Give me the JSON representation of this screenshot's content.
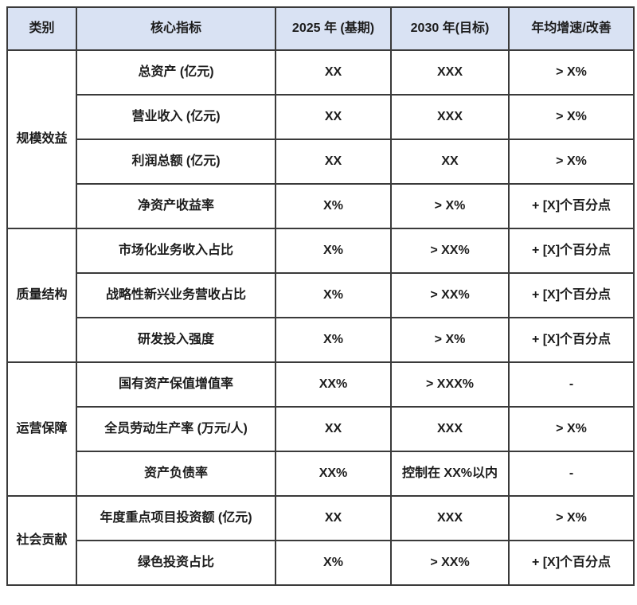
{
  "colors": {
    "header_bg": "#d9e2f3",
    "border": "#3a3a3a",
    "text": "#1c1c1c",
    "page_bg": "#ffffff"
  },
  "table": {
    "headers": {
      "category": "类别",
      "indicator": "核心指标",
      "base_2025": "2025 年 (基期)",
      "target_2030": "2030 年(目标)",
      "growth": "年均增速/改善"
    },
    "groups": [
      {
        "category": "规模效益",
        "rows": [
          {
            "indicator": "总资产 (亿元)",
            "base": "XX",
            "target": "XXX",
            "growth": "> X%"
          },
          {
            "indicator": "营业收入 (亿元)",
            "base": "XX",
            "target": "XXX",
            "growth": "> X%"
          },
          {
            "indicator": "利润总额 (亿元)",
            "base": "XX",
            "target": "XX",
            "growth": "> X%"
          },
          {
            "indicator": "净资产收益率",
            "base": "X%",
            "target": "> X%",
            "growth": "+ [X]个百分点"
          }
        ]
      },
      {
        "category": "质量结构",
        "rows": [
          {
            "indicator": "市场化业务收入占比",
            "base": "X%",
            "target": "> XX%",
            "growth": "+ [X]个百分点"
          },
          {
            "indicator": "战略性新兴业务营收占比",
            "base": "X%",
            "target": "> XX%",
            "growth": "+ [X]个百分点"
          },
          {
            "indicator": "研发投入强度",
            "base": "X%",
            "target": "> X%",
            "growth": "+ [X]个百分点"
          }
        ]
      },
      {
        "category": "运营保障",
        "rows": [
          {
            "indicator": "国有资产保值增值率",
            "base": "XX%",
            "target": "> XXX%",
            "growth": "-"
          },
          {
            "indicator": "全员劳动生产率 (万元/人)",
            "base": "XX",
            "target": "XXX",
            "growth": "> X%"
          },
          {
            "indicator": "资产负债率",
            "base": "XX%",
            "target": "控制在 XX%以内",
            "growth": "-"
          }
        ]
      },
      {
        "category": "社会贡献",
        "rows": [
          {
            "indicator": "年度重点项目投资额 (亿元)",
            "base": "XX",
            "target": "XXX",
            "growth": "> X%"
          },
          {
            "indicator": "绿色投资占比",
            "base": "X%",
            "target": "> XX%",
            "growth": "+ [X]个百分点"
          }
        ]
      }
    ]
  }
}
